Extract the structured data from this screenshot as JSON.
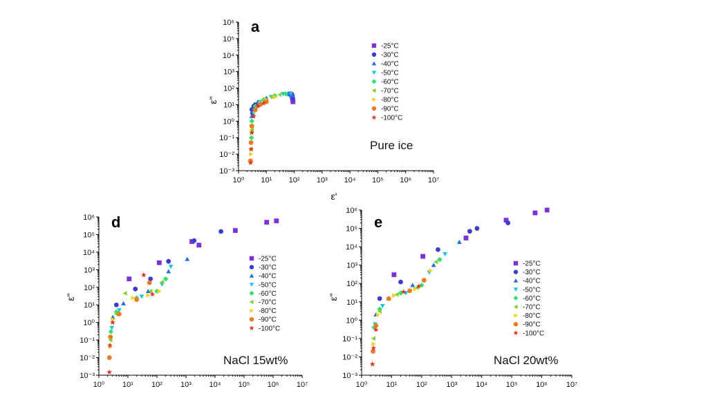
{
  "chart_data": [
    {
      "id": "a",
      "type": "scatter",
      "panel_label": "a",
      "sample_label": "Pure ice",
      "xlabel": "ε'",
      "ylabel": "ε\"",
      "x_log": true,
      "y_log": true,
      "xlim": [
        1,
        10000000
      ],
      "ylim": [
        0.001,
        1000000
      ],
      "legend_placement": "top-right",
      "series": [
        {
          "name": "-25°C",
          "color": "#7a2fe0",
          "marker": "square",
          "points": [
            [
              85,
              30
            ],
            [
              88,
              20
            ],
            [
              90,
              15
            ],
            [
              80,
              40
            ],
            [
              70,
              45
            ]
          ]
        },
        {
          "name": "-30°C",
          "color": "#3b3bd6",
          "marker": "circle",
          "points": [
            [
              3,
              5
            ],
            [
              3.2,
              3
            ],
            [
              3.5,
              8
            ],
            [
              4,
              10
            ],
            [
              80,
              42
            ],
            [
              88,
              25
            ]
          ]
        },
        {
          "name": "-40°C",
          "color": "#1e6fe6",
          "marker": "triangle-up",
          "points": [
            [
              3,
              2
            ],
            [
              3.5,
              6
            ],
            [
              5,
              15
            ],
            [
              10,
              25
            ],
            [
              20,
              35
            ],
            [
              60,
              45
            ],
            [
              85,
              35
            ]
          ]
        },
        {
          "name": "-50°C",
          "color": "#16c4e8",
          "marker": "triangle-down",
          "points": [
            [
              3,
              0.5
            ],
            [
              3.5,
              3
            ],
            [
              6,
              15
            ],
            [
              15,
              30
            ],
            [
              40,
              45
            ],
            [
              75,
              45
            ]
          ]
        },
        {
          "name": "-60°C",
          "color": "#2ee36a",
          "marker": "diamond",
          "points": [
            [
              2.9,
              0.1
            ],
            [
              3,
              1
            ],
            [
              4,
              8
            ],
            [
              8,
              20
            ],
            [
              20,
              35
            ],
            [
              50,
              45
            ]
          ]
        },
        {
          "name": "-70°C",
          "color": "#7fd42a",
          "marker": "triangle-left",
          "points": [
            [
              2.8,
              0.02
            ],
            [
              3,
              0.3
            ],
            [
              4,
              5
            ],
            [
              7,
              18
            ],
            [
              15,
              30
            ],
            [
              30,
              40
            ]
          ]
        },
        {
          "name": "-80°C",
          "color": "#f2d21a",
          "marker": "triangle-right",
          "points": [
            [
              2.8,
              0.01
            ],
            [
              3,
              0.2
            ],
            [
              4,
              4
            ],
            [
              6,
              12
            ],
            [
              10,
              20
            ],
            [
              20,
              30
            ]
          ]
        },
        {
          "name": "-90°C",
          "color": "#f07a1e",
          "marker": "circle",
          "points": [
            [
              2.7,
              0.004
            ],
            [
              2.8,
              0.05
            ],
            [
              3,
              0.5
            ],
            [
              4,
              5
            ],
            [
              6,
              10
            ],
            [
              10,
              15
            ]
          ]
        },
        {
          "name": "-100°C",
          "color": "#e8341c",
          "marker": "star",
          "points": [
            [
              2.7,
              0.003
            ],
            [
              2.8,
              0.02
            ],
            [
              3,
              0.2
            ],
            [
              3.5,
              2
            ],
            [
              5,
              8
            ],
            [
              8,
              12
            ]
          ]
        }
      ]
    },
    {
      "id": "d",
      "type": "scatter",
      "panel_label": "d",
      "sample_label": "NaCl 15wt%",
      "xlabel": "",
      "ylabel": "ε\"",
      "x_log": true,
      "y_log": true,
      "xlim": [
        1,
        10000000
      ],
      "ylim": [
        0.001,
        1000000
      ],
      "legend_placement": "center-right",
      "series": [
        {
          "name": "-25°C",
          "color": "#7a2fe0",
          "marker": "square",
          "points": [
            [
              11,
              300
            ],
            [
              120,
              2500
            ],
            [
              1600,
              40000
            ],
            [
              2800,
              25000
            ],
            [
              50000,
              170000
            ],
            [
              600000,
              500000
            ],
            [
              1300000,
              600000
            ]
          ]
        },
        {
          "name": "-30°C",
          "color": "#3b3bd6",
          "marker": "circle",
          "points": [
            [
              4,
              10
            ],
            [
              18,
              80
            ],
            [
              60,
              300
            ],
            [
              250,
              3000
            ],
            [
              1900,
              45000
            ],
            [
              16000,
              150000
            ]
          ]
        },
        {
          "name": "-40°C",
          "color": "#1e6fe6",
          "marker": "triangle-up",
          "points": [
            [
              3,
              2
            ],
            [
              7,
              12
            ],
            [
              50,
              60
            ],
            [
              250,
              800
            ],
            [
              1100,
              4000
            ]
          ]
        },
        {
          "name": "-50°C",
          "color": "#16c4e8",
          "marker": "triangle-down",
          "points": [
            [
              2.8,
              0.5
            ],
            [
              5,
              5
            ],
            [
              30,
              30
            ],
            [
              150,
              150
            ],
            [
              300,
              1500
            ]
          ]
        },
        {
          "name": "-60°C",
          "color": "#2ee36a",
          "marker": "diamond",
          "points": [
            [
              2.6,
              0.3
            ],
            [
              4,
              4
            ],
            [
              20,
              25
            ],
            [
              100,
              60
            ],
            [
              200,
              300
            ]
          ]
        },
        {
          "name": "-70°C",
          "color": "#7fd42a",
          "marker": "triangle-left",
          "points": [
            [
              2.5,
              0.1
            ],
            [
              4,
              3
            ],
            [
              8,
              45
            ],
            [
              60,
              60
            ],
            [
              150,
              200
            ]
          ]
        },
        {
          "name": "-80°C",
          "color": "#f2d21a",
          "marker": "triangle-right",
          "points": [
            [
              2.5,
              0.04
            ],
            [
              3,
              1.5
            ],
            [
              15,
              25
            ],
            [
              50,
              35
            ],
            [
              120,
              60
            ]
          ]
        },
        {
          "name": "-90°C",
          "color": "#f07a1e",
          "marker": "circle",
          "points": [
            [
              2.3,
              0.01
            ],
            [
              2.5,
              0.15
            ],
            [
              5,
              3
            ],
            [
              20,
              20
            ],
            [
              55,
              180
            ]
          ]
        },
        {
          "name": "-100°C",
          "color": "#e8341c",
          "marker": "star",
          "points": [
            [
              2.3,
              0.0015
            ],
            [
              2.4,
              0.05
            ],
            [
              3,
              1
            ],
            [
              35,
              500
            ],
            [
              70,
              40
            ]
          ]
        }
      ]
    },
    {
      "id": "e",
      "type": "scatter",
      "panel_label": "e",
      "sample_label": "NaCl 20wt%",
      "xlabel": "",
      "ylabel": "ε\"",
      "x_log": true,
      "y_log": true,
      "xlim": [
        1,
        10000000
      ],
      "ylim": [
        0.001,
        1000000
      ],
      "legend_placement": "center-right",
      "series": [
        {
          "name": "-25°C",
          "color": "#7a2fe0",
          "marker": "square",
          "points": [
            [
              12,
              300
            ],
            [
              110,
              3000
            ],
            [
              3000,
              30000
            ],
            [
              65000,
              280000
            ],
            [
              600000,
              700000
            ],
            [
              1500000,
              1000000
            ]
          ]
        },
        {
          "name": "-30°C",
          "color": "#3b3bd6",
          "marker": "circle",
          "points": [
            [
              4,
              15
            ],
            [
              20,
              120
            ],
            [
              350,
              7000
            ],
            [
              4000,
              70000
            ],
            [
              7000,
              100000
            ],
            [
              75000,
              200000
            ]
          ]
        },
        {
          "name": "-40°C",
          "color": "#1e6fe6",
          "marker": "triangle-up",
          "points": [
            [
              3,
              2
            ],
            [
              8,
              15
            ],
            [
              50,
              80
            ],
            [
              250,
              1000
            ],
            [
              1800,
              18000
            ]
          ]
        },
        {
          "name": "-50°C",
          "color": "#16c4e8",
          "marker": "triangle-down",
          "points": [
            [
              2.8,
              0.6
            ],
            [
              5,
              6
            ],
            [
              30,
              30
            ],
            [
              180,
              400
            ],
            [
              600,
              4000
            ]
          ]
        },
        {
          "name": "-60°C",
          "color": "#2ee36a",
          "marker": "diamond",
          "points": [
            [
              2.6,
              0.4
            ],
            [
              4,
              4
            ],
            [
              20,
              30
            ],
            [
              100,
              80
            ],
            [
              400,
              2000
            ]
          ]
        },
        {
          "name": "-70°C",
          "color": "#7fd42a",
          "marker": "triangle-left",
          "points": [
            [
              2.5,
              0.1
            ],
            [
              4,
              3
            ],
            [
              15,
              25
            ],
            [
              70,
              60
            ],
            [
              300,
              1500
            ]
          ]
        },
        {
          "name": "-80°C",
          "color": "#f2d21a",
          "marker": "triangle-right",
          "points": [
            [
              2.5,
              0.05
            ],
            [
              3.5,
              2
            ],
            [
              12,
              22
            ],
            [
              60,
              50
            ],
            [
              200,
              500
            ]
          ]
        },
        {
          "name": "-90°C",
          "color": "#f07a1e",
          "marker": "circle",
          "points": [
            [
              2.4,
              0.02
            ],
            [
              3,
              0.5
            ],
            [
              8,
              15
            ],
            [
              40,
              40
            ],
            [
              120,
              150
            ]
          ]
        },
        {
          "name": "-100°C",
          "color": "#e8341c",
          "marker": "star",
          "points": [
            [
              2.3,
              0.004
            ],
            [
              2.5,
              0.03
            ],
            [
              3,
              0.3
            ],
            [
              25,
              35
            ],
            [
              80,
              70
            ]
          ]
        }
      ]
    }
  ]
}
